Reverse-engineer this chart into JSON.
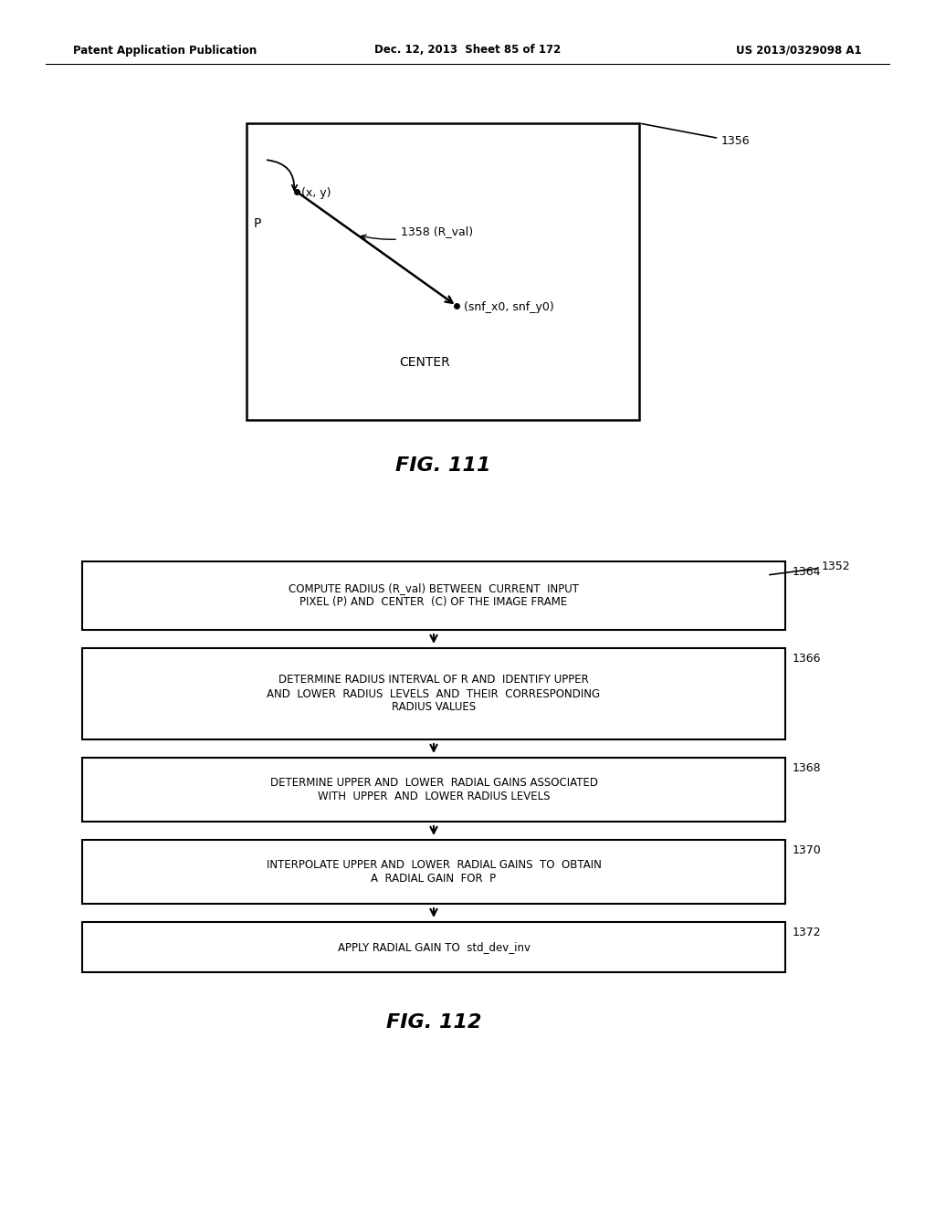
{
  "header_left": "Patent Application Publication",
  "header_center": "Dec. 12, 2013  Sheet 85 of 172",
  "header_right": "US 2013/0329098 A1",
  "fig111_label": "FIG. 111",
  "fig112_label": "FIG. 112",
  "fig111_ref": "1356",
  "fig112_ref": "1352",
  "flowchart_boxes": [
    {
      "text": "COMPUTE RADIUS (R_val) BETWEEN  CURRENT  INPUT\nPIXEL (P) AND  CENTER  (C) OF THE IMAGE FRAME",
      "ref": "1364"
    },
    {
      "text": "DETERMINE RADIUS INTERVAL OF R AND  IDENTIFY UPPER\nAND  LOWER  RADIUS  LEVELS  AND  THEIR  CORRESPONDING\nRADIUS VALUES",
      "ref": "1366"
    },
    {
      "text": "DETERMINE UPPER AND  LOWER  RADIAL GAINS ASSOCIATED\nWITH  UPPER  AND  LOWER RADIUS LEVELS",
      "ref": "1368"
    },
    {
      "text": "INTERPOLATE UPPER AND  LOWER  RADIAL GAINS  TO  OBTAIN\nA  RADIAL GAIN  FOR  P",
      "ref": "1370"
    },
    {
      "text": "APPLY RADIAL GAIN TO  std_dev_inv",
      "ref": "1372"
    }
  ],
  "bg_color": "#ffffff",
  "line_color": "#000000",
  "text_color": "#000000"
}
